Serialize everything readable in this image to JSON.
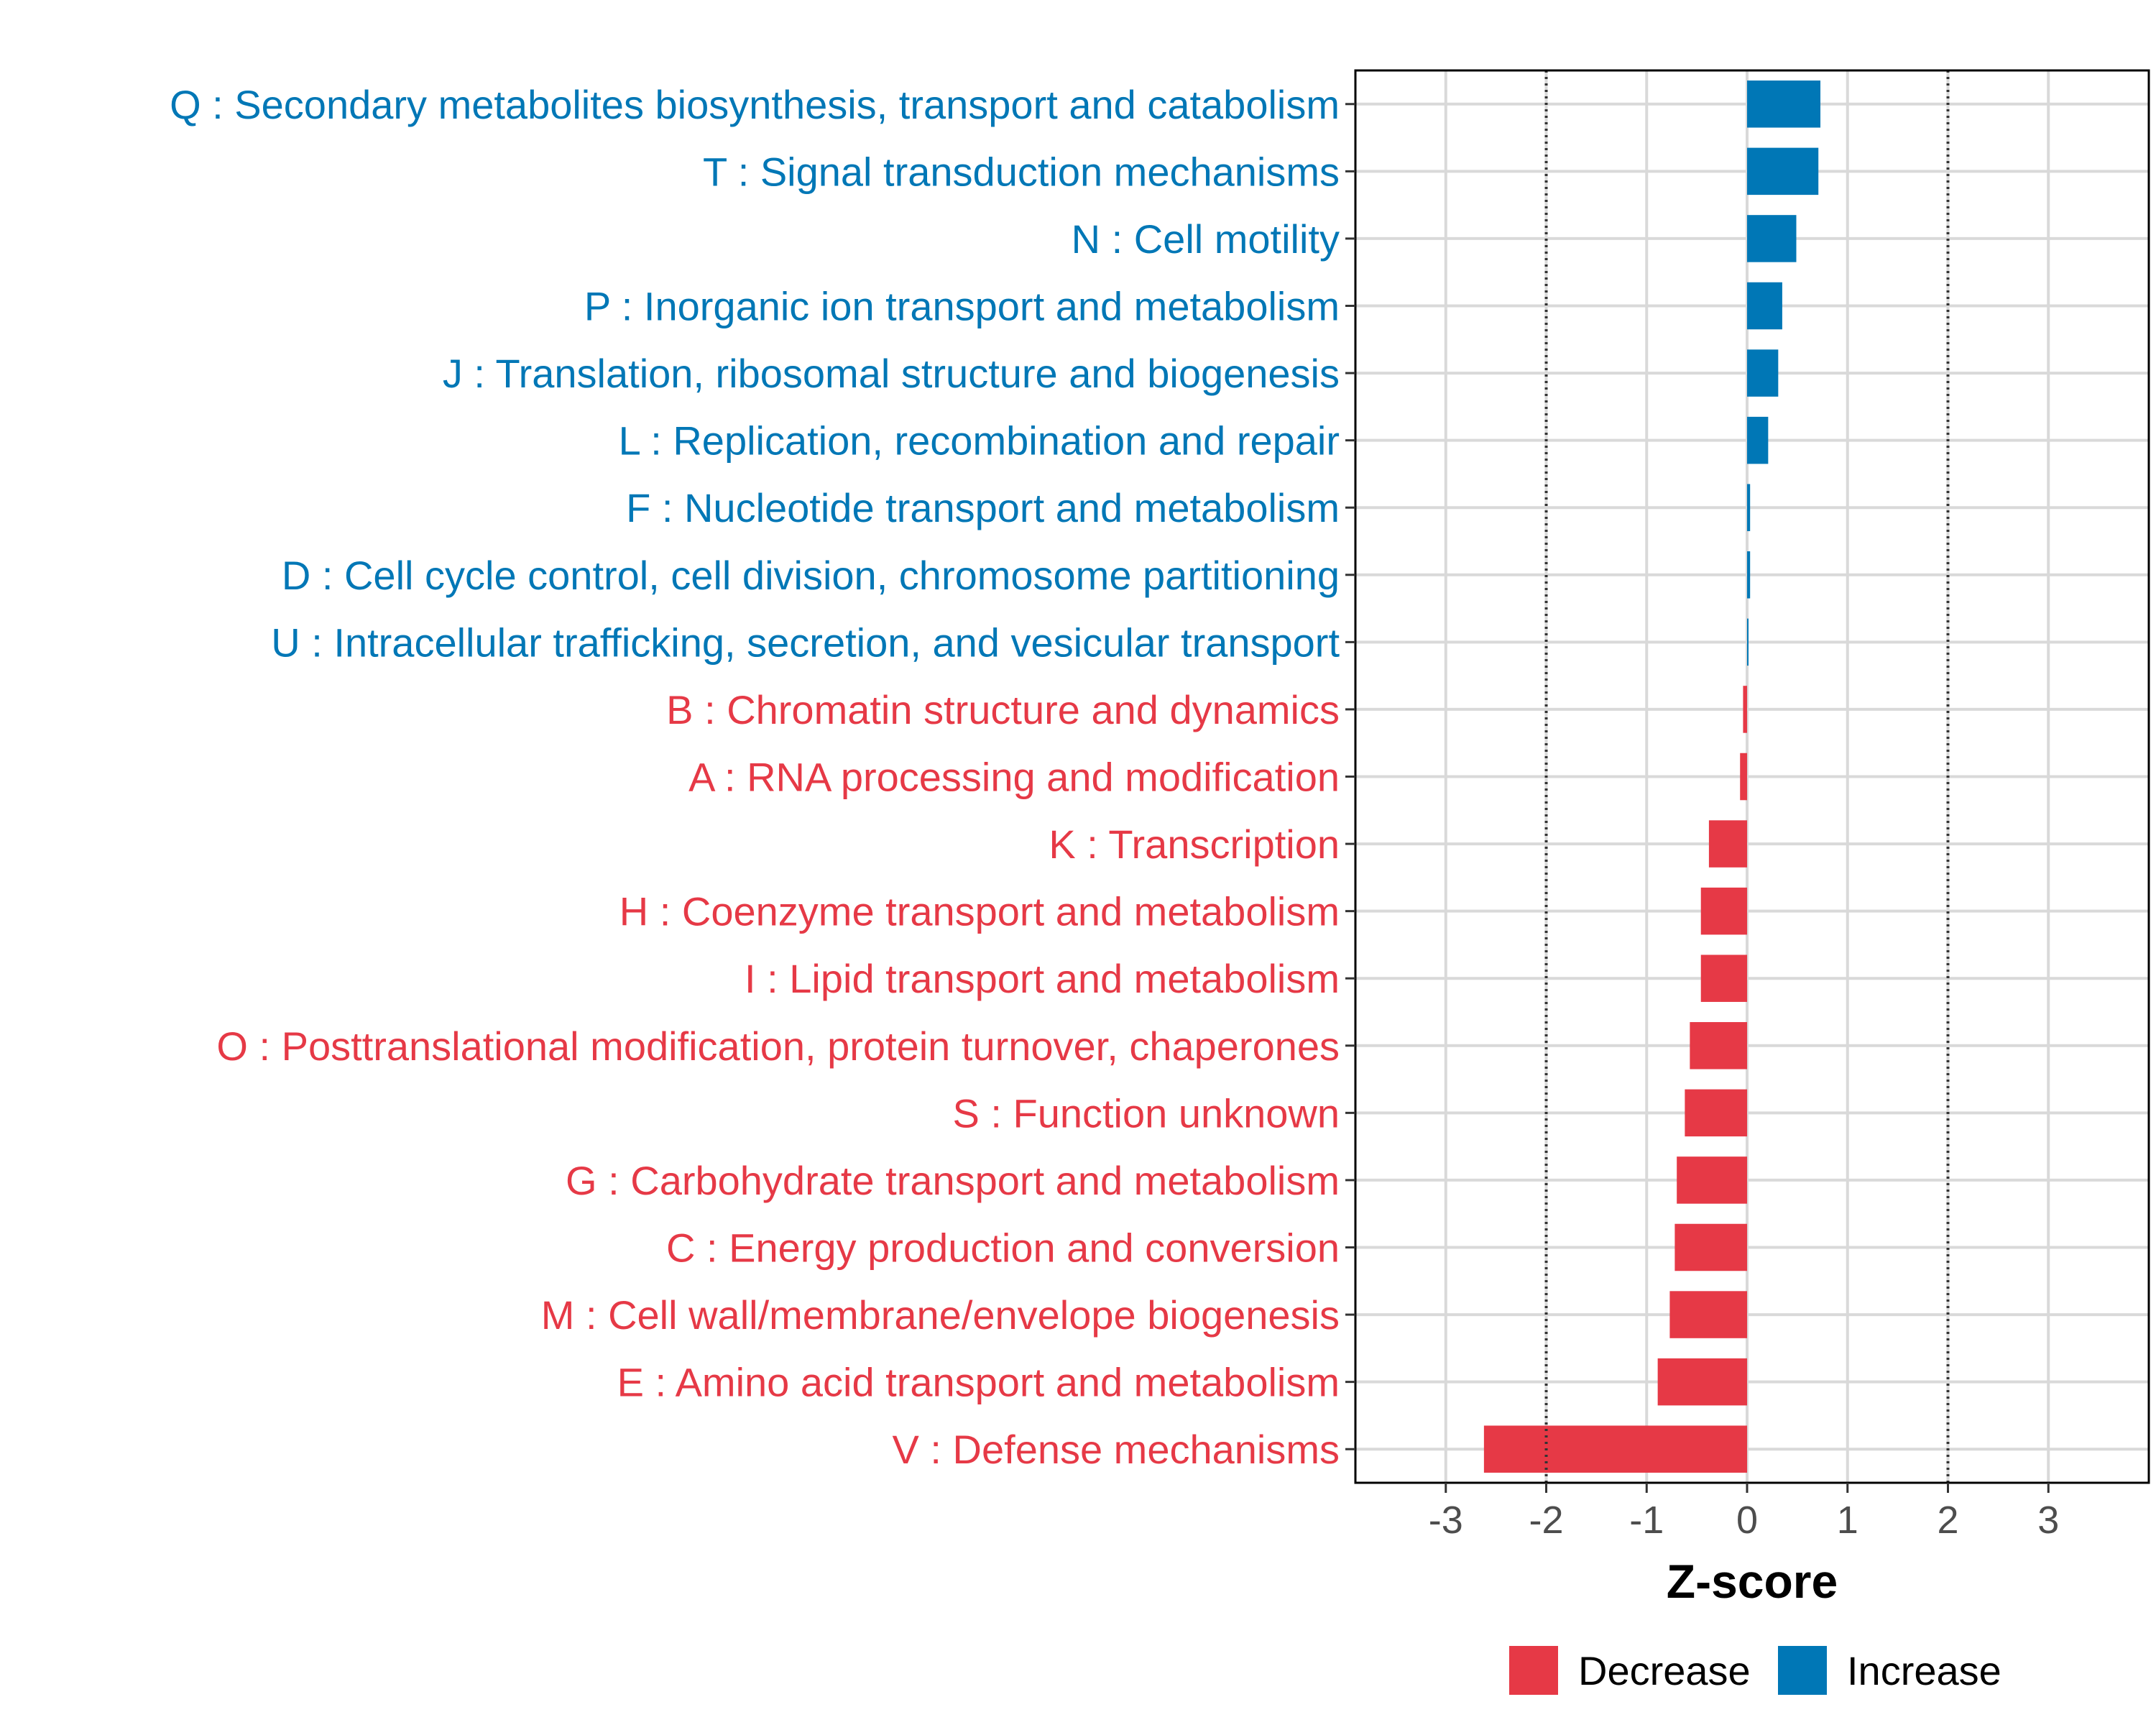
{
  "chart_data": {
    "type": "bar",
    "orientation": "horizontal",
    "xlabel": "Z-score",
    "xlim": [
      -3.9,
      4.0
    ],
    "xticks": [
      -3,
      -2,
      -1,
      0,
      1,
      2,
      3
    ],
    "xtick_labels": [
      "-3",
      "-2",
      "-1",
      "0",
      "1",
      "2",
      "3"
    ],
    "reference_lines": [
      -2,
      2
    ],
    "grid": true,
    "colors": {
      "Decrease": "#e63946",
      "Increase": "#0077b6"
    },
    "legend": {
      "placement": "bottom",
      "entries": [
        {
          "label": "Decrease",
          "color": "#e63946"
        },
        {
          "label": "Increase",
          "color": "#0077b6"
        }
      ]
    },
    "bars": [
      {
        "label": "Q : Secondary metabolites biosynthesis, transport and catabolism",
        "value": 0.73,
        "group": "Increase"
      },
      {
        "label": "T : Signal transduction mechanisms",
        "value": 0.71,
        "group": "Increase"
      },
      {
        "label": "N : Cell motility",
        "value": 0.49,
        "group": "Increase"
      },
      {
        "label": "P : Inorganic ion transport and metabolism",
        "value": 0.35,
        "group": "Increase"
      },
      {
        "label": "J : Translation, ribosomal structure and biogenesis",
        "value": 0.31,
        "group": "Increase"
      },
      {
        "label": "L : Replication, recombination and repair",
        "value": 0.21,
        "group": "Increase"
      },
      {
        "label": "F : Nucleotide transport and metabolism",
        "value": 0.03,
        "group": "Increase"
      },
      {
        "label": "D : Cell cycle control, cell division, chromosome partitioning",
        "value": 0.03,
        "group": "Increase"
      },
      {
        "label": "U : Intracellular trafficking, secretion, and vesicular transport",
        "value": 0.01,
        "group": "Increase"
      },
      {
        "label": "B : Chromatin structure and dynamics",
        "value": -0.04,
        "group": "Decrease"
      },
      {
        "label": "A : RNA processing and modification",
        "value": -0.07,
        "group": "Decrease"
      },
      {
        "label": "K : Transcription",
        "value": -0.38,
        "group": "Decrease"
      },
      {
        "label": "H : Coenzyme transport and metabolism",
        "value": -0.46,
        "group": "Decrease"
      },
      {
        "label": "I : Lipid transport and metabolism",
        "value": -0.46,
        "group": "Decrease"
      },
      {
        "label": "O : Posttranslational modification, protein turnover, chaperones",
        "value": -0.57,
        "group": "Decrease"
      },
      {
        "label": "S : Function unknown",
        "value": -0.62,
        "group": "Decrease"
      },
      {
        "label": "G : Carbohydrate transport and metabolism",
        "value": -0.7,
        "group": "Decrease"
      },
      {
        "label": "C : Energy production and conversion",
        "value": -0.72,
        "group": "Decrease"
      },
      {
        "label": "M : Cell wall/membrane/envelope biogenesis",
        "value": -0.77,
        "group": "Decrease"
      },
      {
        "label": "E : Amino acid transport and metabolism",
        "value": -0.89,
        "group": "Decrease"
      },
      {
        "label": "V : Defense mechanisms",
        "value": -2.62,
        "group": "Decrease"
      }
    ]
  }
}
